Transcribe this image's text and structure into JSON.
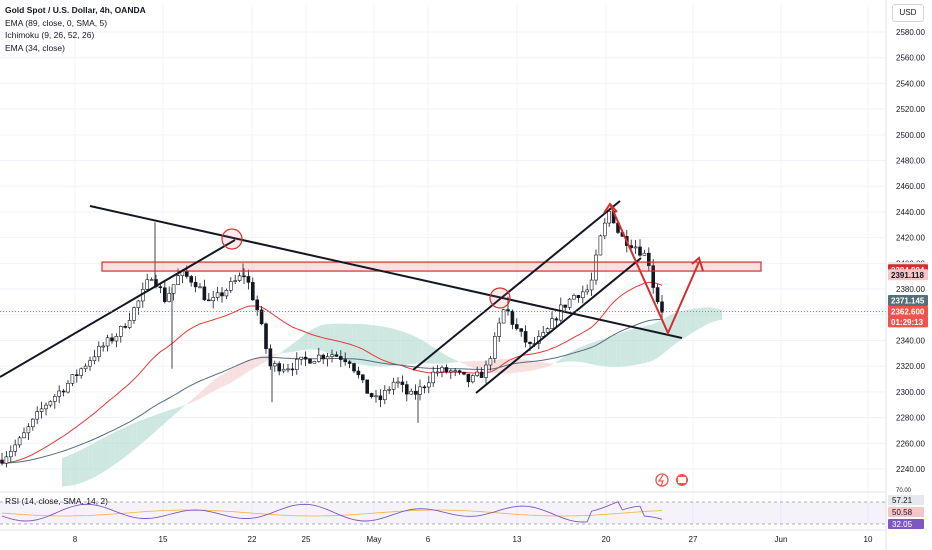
{
  "header": {
    "symbol_title": "Gold Spot / U.S. Dollar, 4h, OANDA",
    "indicators": [
      "EMA (89, close, 0, SMA, 5)",
      "Ichimoku (9, 26, 52, 26)",
      "EMA (34, close)"
    ],
    "rsi_label": "RSI (14, close, SMA, 14, 2)",
    "currency_button": "USD"
  },
  "colors": {
    "up_candle": "#26a69a",
    "down_candle": "#ef5350",
    "candle_body": "#131722",
    "ema34": "#e53935",
    "ema89": "#546e7a",
    "cloud_green": "#a5d6c8",
    "cloud_red": "#f3c7c7",
    "annotation_red": "#d32f2f",
    "trendline": "#131722",
    "rsi_line": "#7e57c2"
  },
  "chart_data": {
    "type": "candlestick",
    "x_axis_ticks": [
      "8",
      "15",
      "22",
      "25",
      "May",
      "6",
      "13",
      "20",
      "27",
      "Jun",
      "10"
    ],
    "y_axis_ticks": [
      2240,
      2260,
      2280,
      2300,
      2320,
      2340,
      2360,
      2380,
      2400,
      2420,
      2440,
      2460,
      2480,
      2500,
      2520,
      2540,
      2560,
      2580
    ],
    "ylim": [
      2222,
      2594
    ],
    "price_tags": [
      {
        "label": "2396.678",
        "value": 2396.678,
        "color": "#e6e8ec",
        "text_color": "#131722"
      },
      {
        "label": "2394.994",
        "value": 2394.994,
        "color": "#d32f2f",
        "text_color": "#ffffff"
      },
      {
        "label": "2391.118",
        "value": 2391.118,
        "color": "#f6c6c6",
        "text_color": "#131722"
      },
      {
        "label": "2371.145",
        "value": 2371.145,
        "color": "#546e7a",
        "text_color": "#ffffff"
      },
      {
        "label": "2362.600",
        "value": 2362.6,
        "color": "#ef5350",
        "text_color": "#ffffff"
      },
      {
        "label": "01:29:13",
        "value": 2354.5,
        "color": "#ef5350",
        "text_color": "#ffffff"
      }
    ],
    "rsi": {
      "labels": [
        "57.21",
        "50.58",
        "32.05"
      ],
      "ticks": [
        "70.00"
      ]
    },
    "resistance_zone": [
      2394,
      2401
    ],
    "current_price": 2362.6
  }
}
